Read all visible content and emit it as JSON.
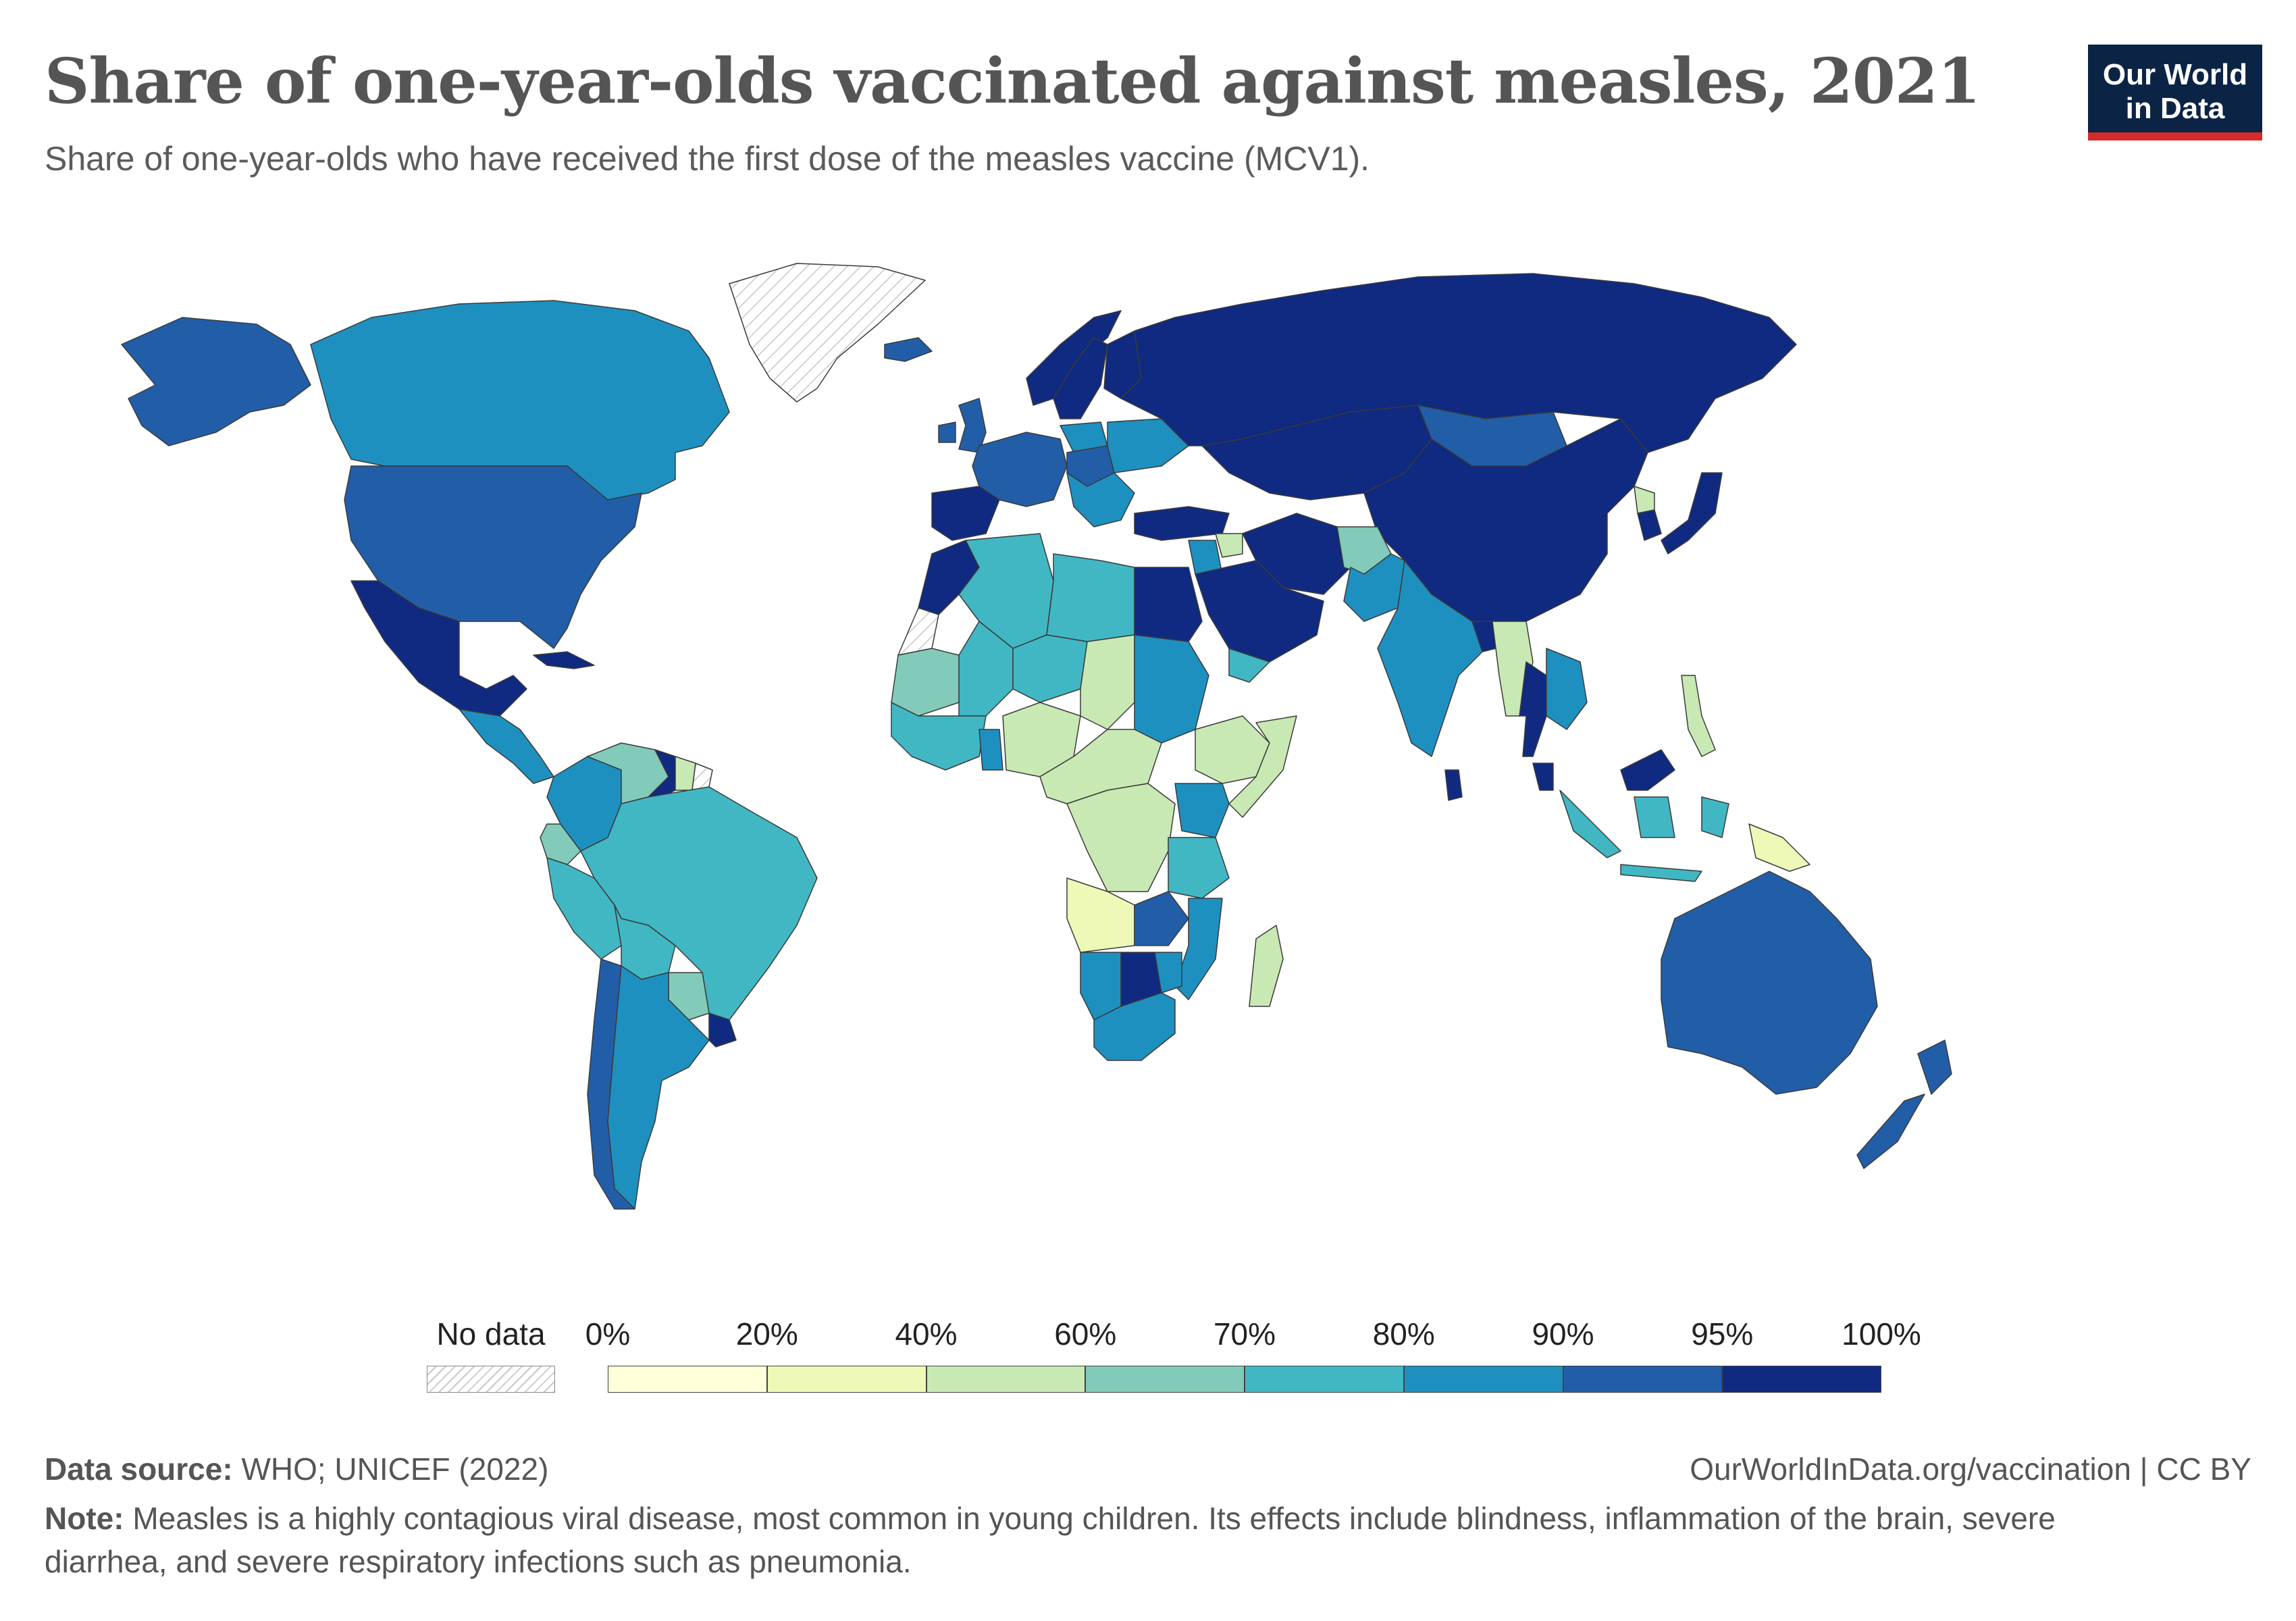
{
  "title": "Share of one-year-olds vaccinated against measles, 2021",
  "subtitle": "Share of one-year-olds who have received the first dose of the measles vaccine (MCV1).",
  "logo": {
    "line1": "Our World",
    "line2": "in Data"
  },
  "legend": {
    "no_data_label": "No data",
    "bins": [
      {
        "label": "0%",
        "color": "#fefed8"
      },
      {
        "label": "20%",
        "color": "#eef8b7"
      },
      {
        "label": "40%",
        "color": "#c8e9b4"
      },
      {
        "label": "60%",
        "color": "#82cbbb"
      },
      {
        "label": "70%",
        "color": "#41b7c4"
      },
      {
        "label": "80%",
        "color": "#1e90c0"
      },
      {
        "label": "90%",
        "color": "#225ea8"
      },
      {
        "label": "95%",
        "color": "#0f2a80"
      }
    ],
    "end_label": "100%"
  },
  "footer": {
    "source_label": "Data source:",
    "source_value": "WHO; UNICEF (2022)",
    "url": "OurWorldInData.org/vaccination | CC BY",
    "note_label": "Note:",
    "note_text": "Measles is a highly contagious viral disease, most common in young children. Its effects include blindness, inflammation of the brain, severe diarrhea, and severe respiratory infections such as pneumonia."
  },
  "chart_data": {
    "type": "choropleth",
    "year": 2021,
    "unit": "%",
    "bins": [
      0,
      20,
      40,
      60,
      70,
      80,
      90,
      95,
      100
    ],
    "regions": [
      {
        "name": "Greenland",
        "value": null
      },
      {
        "name": "Western Sahara",
        "value": null
      },
      {
        "name": "French Guiana",
        "value": null
      },
      {
        "name": "Alaska (United States)",
        "value": 91
      },
      {
        "name": "Canada",
        "value": 88
      },
      {
        "name": "United States",
        "value": 91
      },
      {
        "name": "Mexico",
        "value": 97
      },
      {
        "name": "Cuba",
        "value": 98
      },
      {
        "name": "Central America",
        "value": 85
      },
      {
        "name": "Colombia",
        "value": 88
      },
      {
        "name": "Venezuela",
        "value": 68
      },
      {
        "name": "Guyana",
        "value": 97
      },
      {
        "name": "Suriname",
        "value": 50
      },
      {
        "name": "Ecuador",
        "value": 67
      },
      {
        "name": "Peru",
        "value": 78
      },
      {
        "name": "Brazil",
        "value": 73
      },
      {
        "name": "Bolivia",
        "value": 72
      },
      {
        "name": "Paraguay",
        "value": 68
      },
      {
        "name": "Chile",
        "value": 93
      },
      {
        "name": "Argentina",
        "value": 85
      },
      {
        "name": "Uruguay",
        "value": 97
      },
      {
        "name": "Iceland",
        "value": 90
      },
      {
        "name": "United Kingdom",
        "value": 90
      },
      {
        "name": "Ireland",
        "value": 90
      },
      {
        "name": "Norway",
        "value": 97
      },
      {
        "name": "Sweden",
        "value": 97
      },
      {
        "name": "Finland",
        "value": 96
      },
      {
        "name": "Western Europe",
        "value": 93
      },
      {
        "name": "Iberia",
        "value": 97
      },
      {
        "name": "Eastern Europe",
        "value": 90
      },
      {
        "name": "Ukraine",
        "value": 85
      },
      {
        "name": "Poland",
        "value": 88
      },
      {
        "name": "Balkans",
        "value": 85
      },
      {
        "name": "Russia",
        "value": 97
      },
      {
        "name": "Turkey",
        "value": 97
      },
      {
        "name": "Kazakhstan & Central Asia",
        "value": 98
      },
      {
        "name": "Mongolia",
        "value": 92
      },
      {
        "name": "China",
        "value": 99
      },
      {
        "name": "North Korea",
        "value": 55
      },
      {
        "name": "South Korea",
        "value": 97
      },
      {
        "name": "Japan",
        "value": 98
      },
      {
        "name": "Iran",
        "value": 99
      },
      {
        "name": "Arabian Peninsula",
        "value": 97
      },
      {
        "name": "Yemen",
        "value": 71
      },
      {
        "name": "Levant",
        "value": 80
      },
      {
        "name": "Syria",
        "value": 51
      },
      {
        "name": "Afghanistan",
        "value": 63
      },
      {
        "name": "Pakistan",
        "value": 81
      },
      {
        "name": "India",
        "value": 89
      },
      {
        "name": "Bangladesh",
        "value": 97
      },
      {
        "name": "Sri Lanka",
        "value": 97
      },
      {
        "name": "Myanmar",
        "value": 44
      },
      {
        "name": "Thailand",
        "value": 96
      },
      {
        "name": "Indochina",
        "value": 87
      },
      {
        "name": "Malaysia",
        "value": 96
      },
      {
        "name": "Philippines",
        "value": 57
      },
      {
        "name": "Indonesia",
        "value": 72
      },
      {
        "name": "Papua New Guinea",
        "value": 33
      },
      {
        "name": "Australia",
        "value": 93
      },
      {
        "name": "New Zealand",
        "value": 91
      },
      {
        "name": "Morocco",
        "value": 99
      },
      {
        "name": "Algeria",
        "value": 79
      },
      {
        "name": "Libya",
        "value": 73
      },
      {
        "name": "Egypt",
        "value": 96
      },
      {
        "name": "Mauritania",
        "value": 68
      },
      {
        "name": "Mali",
        "value": 70
      },
      {
        "name": "Niger",
        "value": 75
      },
      {
        "name": "Chad",
        "value": 55
      },
      {
        "name": "Sudan",
        "value": 81
      },
      {
        "name": "Ethiopia",
        "value": 54
      },
      {
        "name": "Somalia",
        "value": 46
      },
      {
        "name": "Kenya",
        "value": 89
      },
      {
        "name": "Nigeria",
        "value": 59
      },
      {
        "name": "West Africa",
        "value": 72
      },
      {
        "name": "Ghana",
        "value": 85
      },
      {
        "name": "Central Africa",
        "value": 55
      },
      {
        "name": "DR Congo",
        "value": 55
      },
      {
        "name": "Angola",
        "value": 36
      },
      {
        "name": "Tanzania",
        "value": 76
      },
      {
        "name": "Zambia",
        "value": 90
      },
      {
        "name": "Mozambique",
        "value": 89
      },
      {
        "name": "Namibia",
        "value": 81
      },
      {
        "name": "Botswana",
        "value": 97
      },
      {
        "name": "Zimbabwe",
        "value": 87
      },
      {
        "name": "South Africa",
        "value": 86
      },
      {
        "name": "Madagascar",
        "value": 40
      }
    ]
  }
}
